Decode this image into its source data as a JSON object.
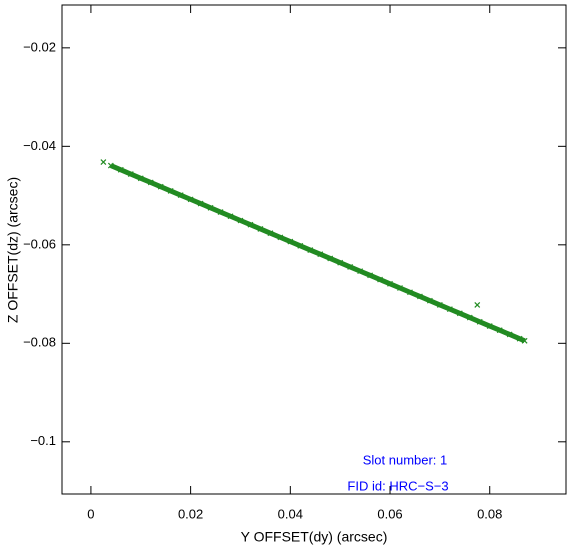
{
  "chart_data": {
    "type": "scatter",
    "x_label": "Y OFFSET(dy) (arcsec)",
    "y_label": "Z OFFSET(dz) (arcsec)",
    "annotations": [
      "Slot number: 1",
      "FID id: HRC−S−3"
    ],
    "annotation_color": "#0000ff",
    "xlim": [
      -0.0058,
      0.0953
    ],
    "ylim": [
      -0.1106,
      -0.0113
    ],
    "xticks": [
      0,
      0.02,
      0.04,
      0.06,
      0.08
    ],
    "yticks": [
      {
        "value": -0.02,
        "label": "−0.02"
      },
      {
        "value": -0.04,
        "label": "−0.04"
      },
      {
        "value": -0.06,
        "label": "−0.06"
      },
      {
        "value": -0.08,
        "label": "−0.08"
      },
      {
        "value": -0.1,
        "label": "−0.1"
      }
    ],
    "series": [
      {
        "color": "#228b22",
        "line": true,
        "x": [
          0.004,
          0.006,
          0.008,
          0.01,
          0.012,
          0.014,
          0.016,
          0.018,
          0.02,
          0.022,
          0.024,
          0.026,
          0.028,
          0.03,
          0.032,
          0.034,
          0.036,
          0.038,
          0.04,
          0.042,
          0.044,
          0.046,
          0.048,
          0.05,
          0.052,
          0.054,
          0.056,
          0.058,
          0.06,
          0.062,
          0.064,
          0.066,
          0.068,
          0.07,
          0.072,
          0.074,
          0.076,
          0.078,
          0.08,
          0.082,
          0.084,
          0.086,
          0.087
        ],
        "values": [
          -0.04391,
          -0.04477,
          -0.04563,
          -0.04649,
          -0.04734,
          -0.0482,
          -0.04906,
          -0.04991,
          -0.05077,
          -0.05163,
          -0.05249,
          -0.05334,
          -0.0542,
          -0.05506,
          -0.05591,
          -0.05677,
          -0.05763,
          -0.05849,
          -0.05934,
          -0.0602,
          -0.06106,
          -0.06191,
          -0.06277,
          -0.06363,
          -0.06449,
          -0.06534,
          -0.0662,
          -0.06706,
          -0.06791,
          -0.06877,
          -0.06963,
          -0.07049,
          -0.07134,
          -0.0722,
          -0.07306,
          -0.07391,
          -0.07477,
          -0.07563,
          -0.07649,
          -0.07734,
          -0.0782,
          -0.07906,
          -0.07949
        ]
      },
      {
        "color": "#228b22",
        "line": false,
        "x": [
          0.0025,
          0.0775
        ],
        "values": [
          -0.0432,
          -0.0722
        ]
      }
    ]
  }
}
